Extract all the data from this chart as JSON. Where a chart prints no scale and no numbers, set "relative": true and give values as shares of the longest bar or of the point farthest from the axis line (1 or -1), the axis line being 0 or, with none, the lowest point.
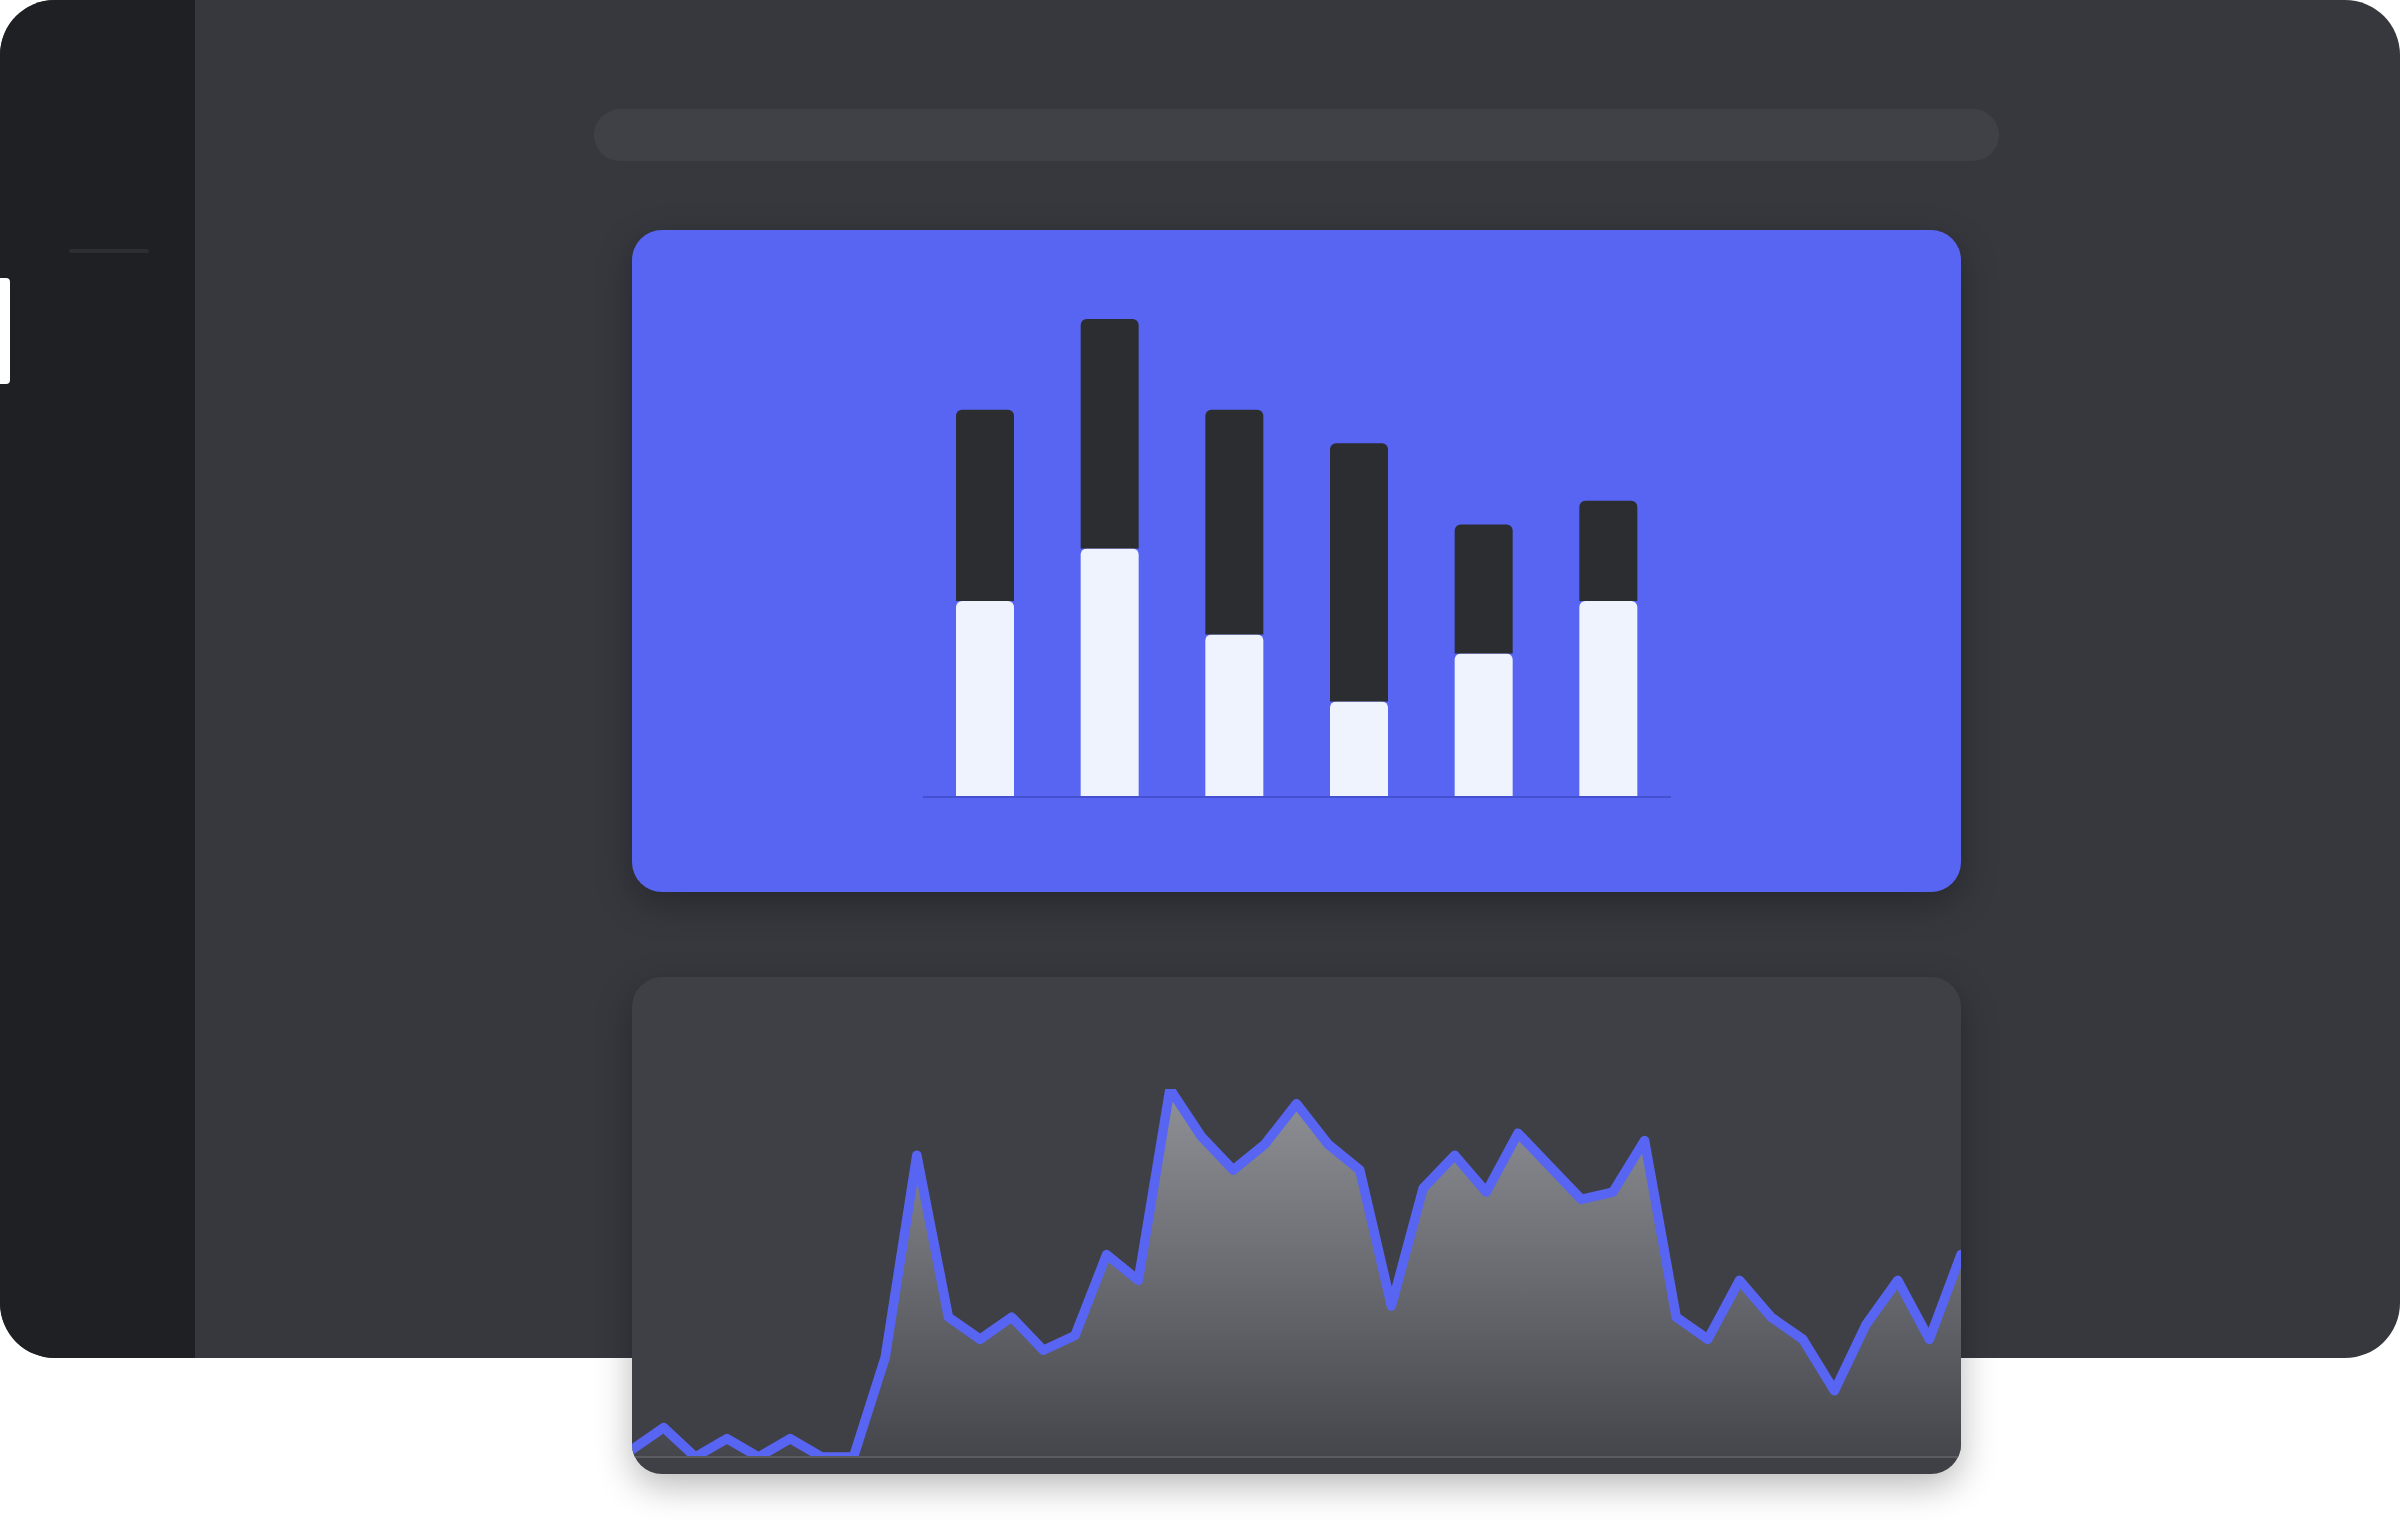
{
  "chart_data": [
    {
      "type": "bar",
      "stacked": true,
      "relative": true,
      "categories": [
        null,
        null,
        null,
        null,
        null,
        null
      ],
      "series": [
        {
          "color": "#eff3fe",
          "values": [
            0.41,
            0.52,
            0.34,
            0.2,
            0.3,
            0.41
          ]
        },
        {
          "color": "#2b2d31",
          "values": [
            0.4,
            0.48,
            0.47,
            0.54,
            0.27,
            0.21
          ]
        }
      ]
    },
    {
      "type": "area",
      "relative": true,
      "color": "#5865f2",
      "categories": [
        null,
        null,
        null,
        null,
        null,
        null,
        null,
        null,
        null,
        null,
        null,
        null,
        null,
        null,
        null,
        null,
        null,
        null,
        null,
        null,
        null,
        null,
        null,
        null,
        null,
        null,
        null,
        null,
        null,
        null,
        null,
        null,
        null,
        null,
        null,
        null,
        null,
        null,
        null,
        null,
        null,
        null,
        null
      ],
      "values": [
        0.02,
        0.08,
        0,
        0.05,
        0,
        0.05,
        0,
        0,
        0.27,
        0.82,
        0.38,
        0.32,
        0.38,
        0.29,
        0.33,
        0.55,
        0.48,
        1,
        0.87,
        0.78,
        0.85,
        0.96,
        0.85,
        0.78,
        0.41,
        0.73,
        0.82,
        0.72,
        0.88,
        0.79,
        0.7,
        0.72,
        0.86,
        0.38,
        0.32,
        0.48,
        0.38,
        0.32,
        0.18,
        0.36,
        0.48,
        0.32,
        0.55
      ]
    }
  ]
}
